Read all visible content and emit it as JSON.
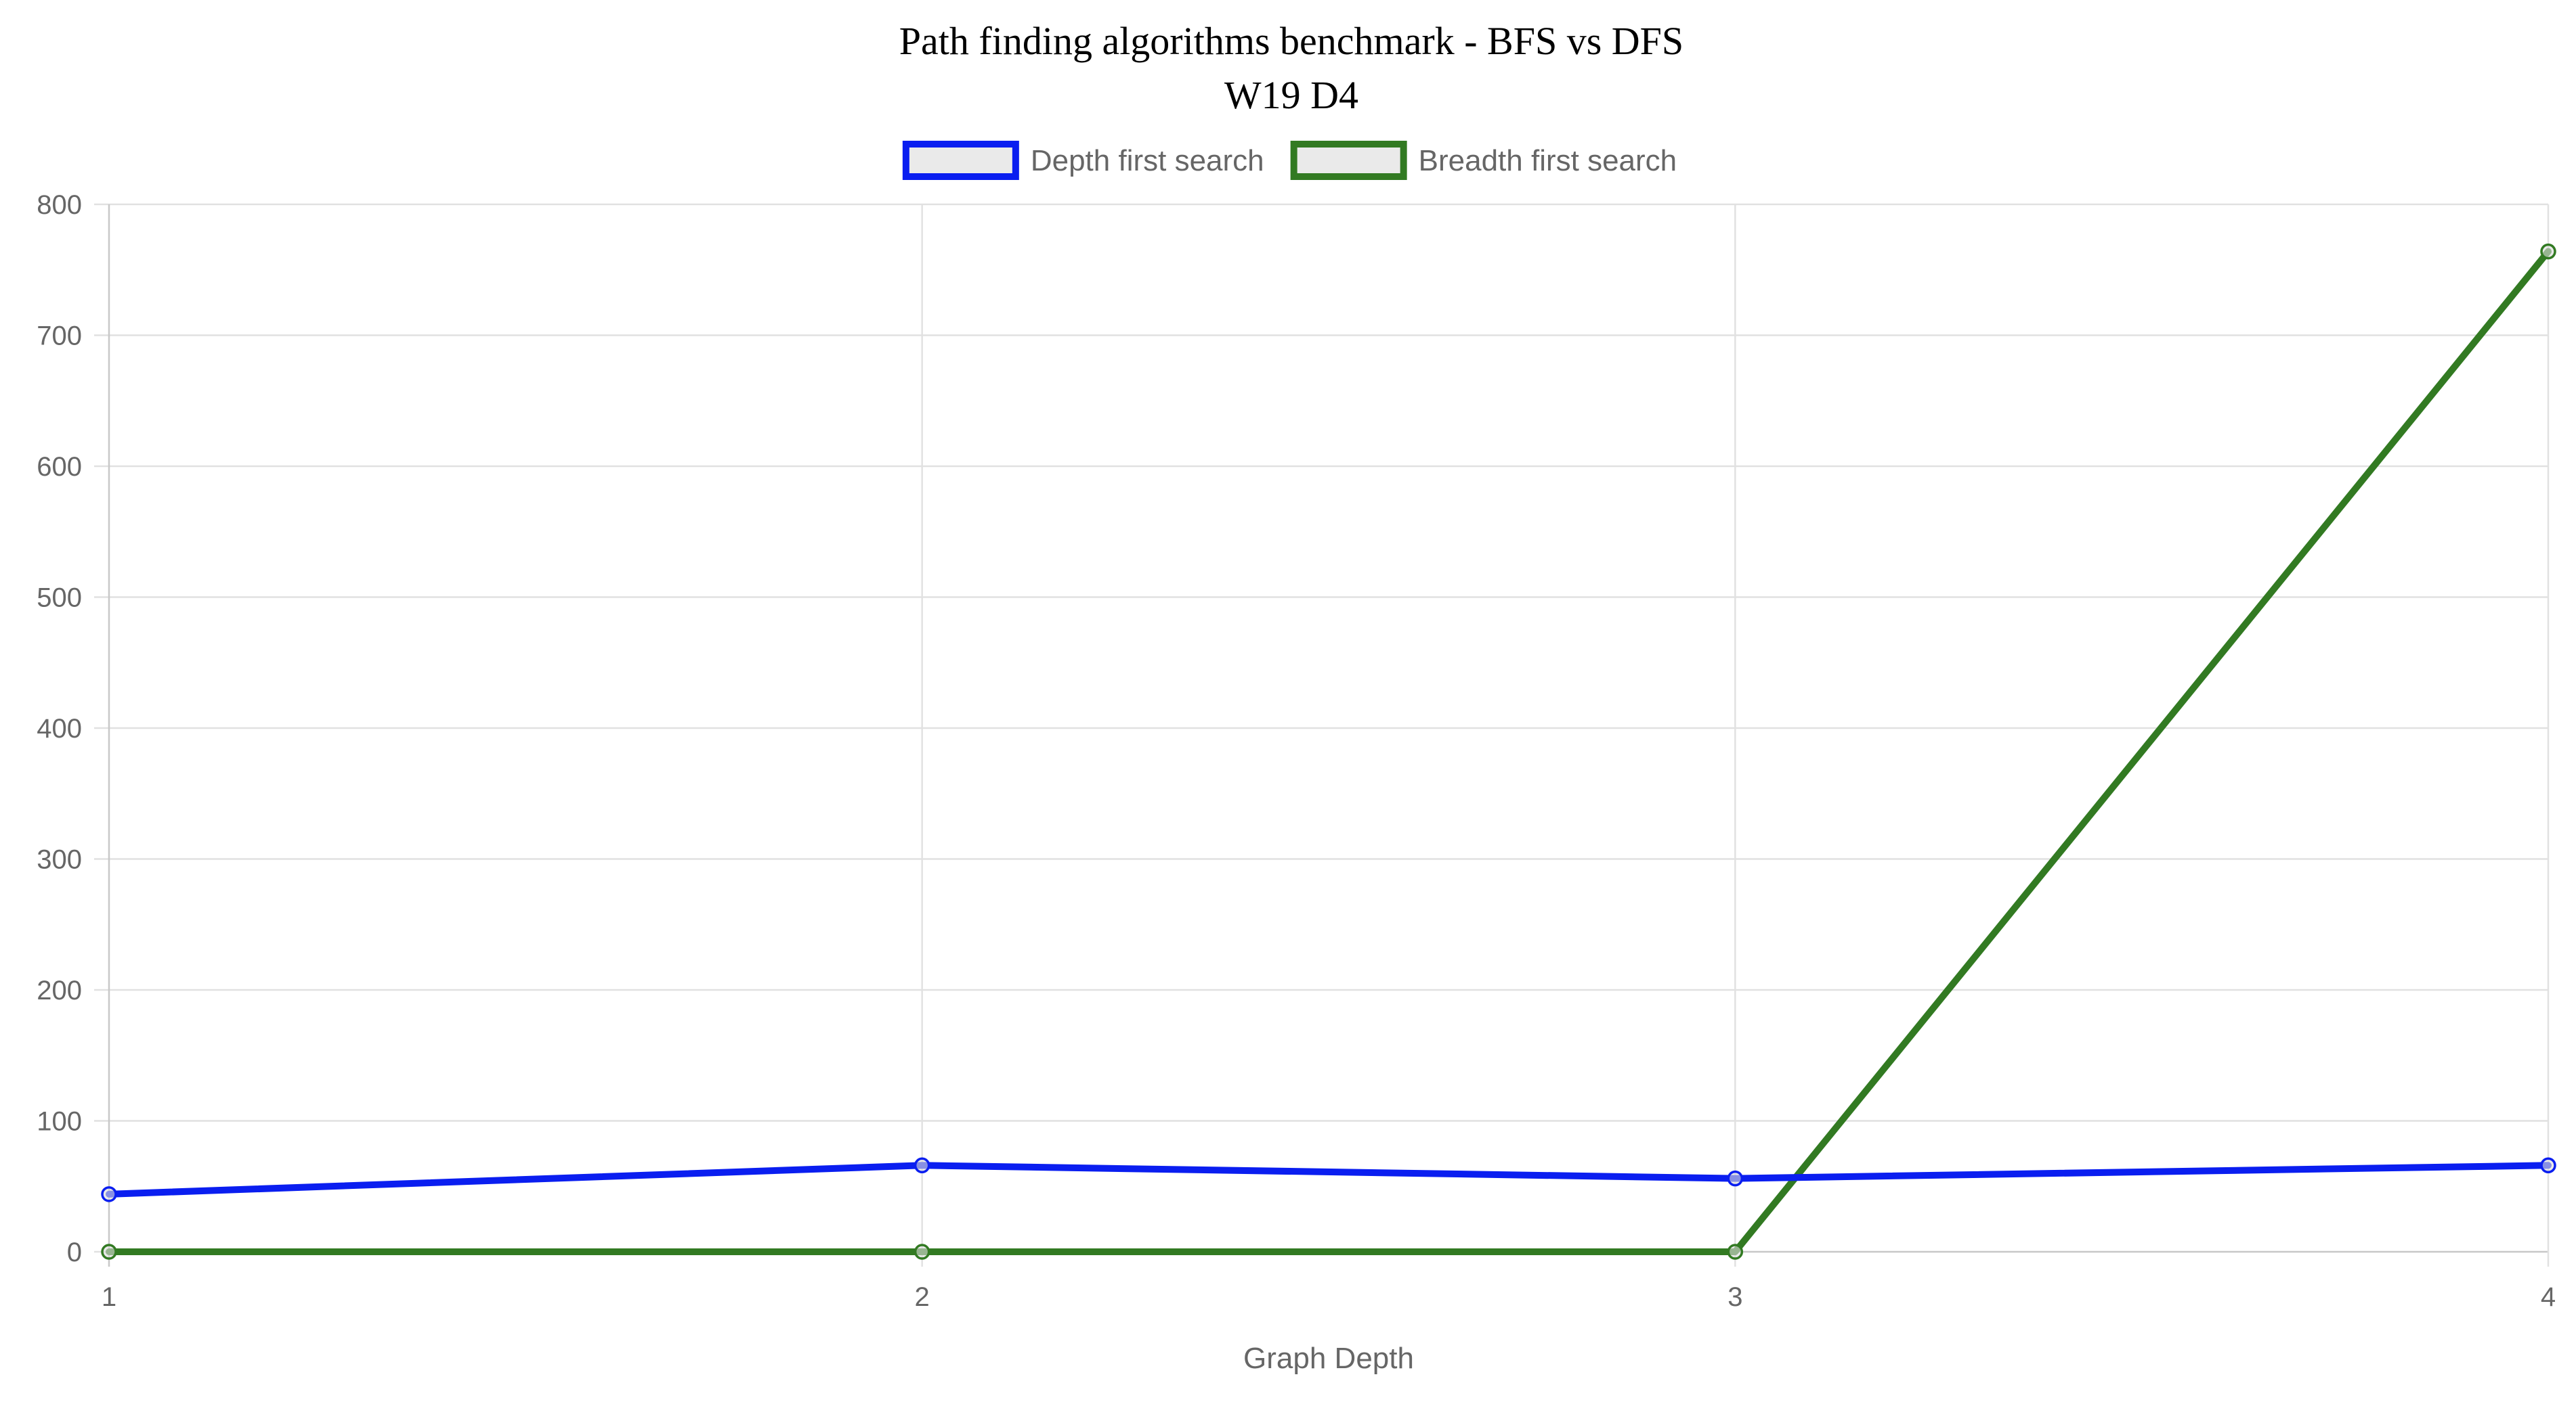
{
  "chart_data": {
    "type": "line",
    "title": "Path finding algorithms benchmark - BFS vs DFS",
    "subtitle": "W19 D4",
    "xlabel": "Graph Depth",
    "ylabel": "",
    "categories": [
      "1",
      "2",
      "3",
      "4"
    ],
    "ylim": [
      0,
      800
    ],
    "yticks": [
      0,
      100,
      200,
      300,
      400,
      500,
      600,
      700,
      800
    ],
    "grid": true,
    "legend_position": "top-center",
    "series": [
      {
        "name": "Depth first search",
        "color": "#0a1ef0",
        "values": [
          44,
          66,
          56,
          66
        ]
      },
      {
        "name": "Breadth first search",
        "color": "#327a22",
        "values": [
          0,
          0,
          0,
          764
        ]
      }
    ]
  }
}
